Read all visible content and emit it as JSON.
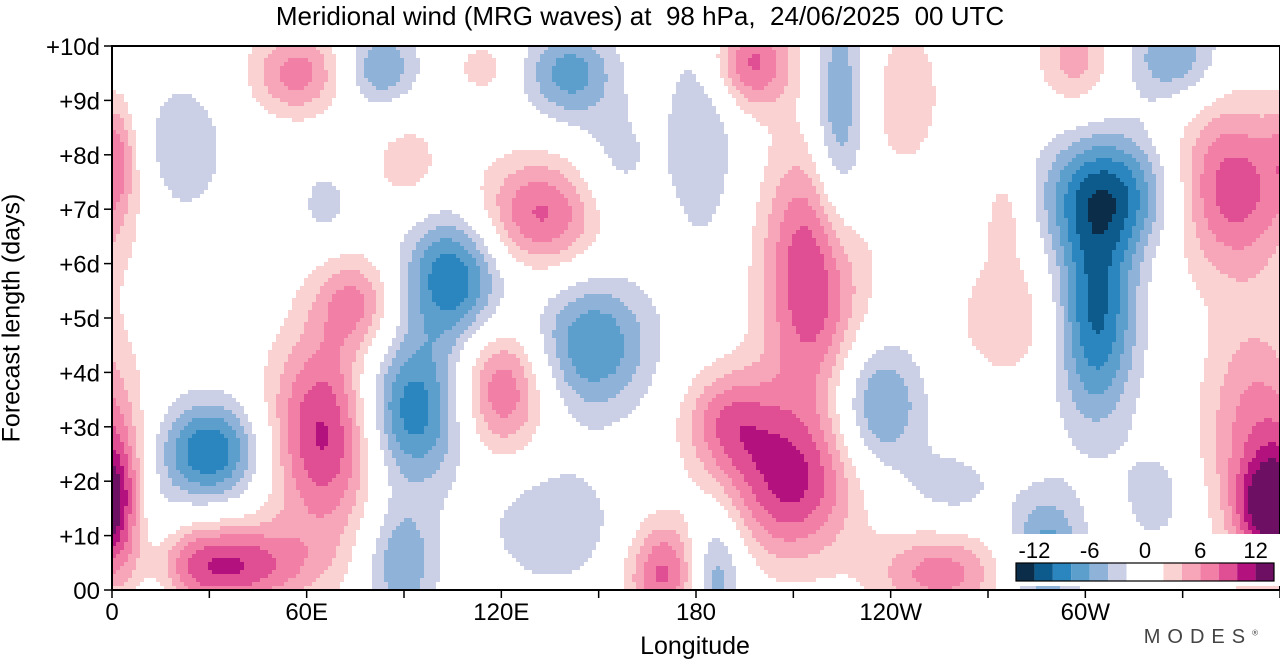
{
  "page": {
    "title": "Meridional wind (MRG waves) at  98 hPa,  24/06/2025  00 UTC",
    "brand": "MODES"
  },
  "chart_data": {
    "type": "heatmap",
    "title": "Meridional wind (MRG waves) at  98 hPa,  24/06/2025  00 UTC",
    "xlabel": "Longitude",
    "ylabel": "Forecast length (days)",
    "x_ticks": [
      {
        "lon": 0,
        "label": "0"
      },
      {
        "lon": 60,
        "label": "60E"
      },
      {
        "lon": 120,
        "label": "120E"
      },
      {
        "lon": 180,
        "label": "180"
      },
      {
        "lon": 240,
        "label": "120W"
      },
      {
        "lon": 300,
        "label": "60W"
      }
    ],
    "xlim": [
      0,
      360
    ],
    "y_ticks": [
      {
        "day": 0,
        "label": "00"
      },
      {
        "day": 1,
        "label": "+1d"
      },
      {
        "day": 2,
        "label": "+2d"
      },
      {
        "day": 3,
        "label": "+3d"
      },
      {
        "day": 4,
        "label": "+4d"
      },
      {
        "day": 5,
        "label": "+5d"
      },
      {
        "day": 6,
        "label": "+6d"
      },
      {
        "day": 7,
        "label": "+7d"
      },
      {
        "day": 8,
        "label": "+8d"
      },
      {
        "day": 9,
        "label": "+9d"
      },
      {
        "day": 10,
        "label": "+10d"
      }
    ],
    "ylim": [
      0,
      10
    ],
    "colorbar": {
      "labels": [
        {
          "value": -12,
          "label": "-12"
        },
        {
          "value": -6,
          "label": "-6"
        },
        {
          "value": 0,
          "label": "0"
        },
        {
          "value": 6,
          "label": "6"
        },
        {
          "value": 12,
          "label": "12"
        }
      ],
      "range": [
        -14,
        14
      ],
      "levels": [
        {
          "from": -14,
          "to": -12,
          "color": "#0b2d4a"
        },
        {
          "from": -12,
          "to": -10,
          "color": "#0d5a8c"
        },
        {
          "from": -10,
          "to": -8,
          "color": "#2b86bf"
        },
        {
          "from": -8,
          "to": -6,
          "color": "#5c9fcc"
        },
        {
          "from": -6,
          "to": -4,
          "color": "#8eb2d8"
        },
        {
          "from": -4,
          "to": -2,
          "color": "#ccd0e6"
        },
        {
          "from": -2,
          "to": 2,
          "color": "#ffffff"
        },
        {
          "from": 2,
          "to": 4,
          "color": "#fbd2d2"
        },
        {
          "from": 4,
          "to": 6,
          "color": "#f7a6b9"
        },
        {
          "from": 6,
          "to": 8,
          "color": "#f27fa6"
        },
        {
          "from": 8,
          "to": 10,
          "color": "#e04f93"
        },
        {
          "from": 10,
          "to": 12,
          "color": "#b3127e"
        },
        {
          "from": 12,
          "to": 14,
          "color": "#6d0f63"
        }
      ]
    },
    "features": [
      {
        "lon": 30,
        "day": 2.55,
        "peak": -10,
        "sx": 11,
        "sy": 0.65
      },
      {
        "lon": 21,
        "day": 8.1,
        "peak": -4,
        "sx": 10,
        "sy": 0.9
      },
      {
        "lon": 34,
        "day": 0.45,
        "peak": 10.5,
        "sx": 19,
        "sy": 0.55
      },
      {
        "lon": 2,
        "day": 1.8,
        "peak": 6,
        "sx": 6,
        "sy": 1.0
      },
      {
        "lon": 2,
        "day": 8.0,
        "peak": 4,
        "sx": 4,
        "sy": 0.7
      },
      {
        "lon": 13,
        "day": 0.5,
        "peak": -4,
        "sx": 6,
        "sy": 0.9
      },
      {
        "lon": 66,
        "day": 2.9,
        "peak": 11,
        "sx": 12,
        "sy": 1.3
      },
      {
        "lon": 75,
        "day": 5.3,
        "peak": 6,
        "sx": 9,
        "sy": 0.6
      },
      {
        "lon": 57,
        "day": 9.5,
        "peak": 7,
        "sx": 10,
        "sy": 0.55
      },
      {
        "lon": 83,
        "day": 9.6,
        "peak": -6,
        "sx": 8,
        "sy": 0.5
      },
      {
        "lon": 66,
        "day": 7.1,
        "peak": -3,
        "sx": 6,
        "sy": 0.5
      },
      {
        "lon": 92,
        "day": 3.3,
        "peak": -10,
        "sx": 12,
        "sy": 0.95
      },
      {
        "lon": 105,
        "day": 5.75,
        "peak": -10,
        "sx": 11,
        "sy": 0.85
      },
      {
        "lon": 89,
        "day": 0.5,
        "peak": -6,
        "sx": 8,
        "sy": 0.8
      },
      {
        "lon": 91,
        "day": 7.8,
        "peak": 3,
        "sx": 9,
        "sy": 0.7
      },
      {
        "lon": 120,
        "day": 3.7,
        "peak": 8.5,
        "sx": 10,
        "sy": 0.85
      },
      {
        "lon": 132,
        "day": 6.9,
        "peak": 8.5,
        "sx": 14,
        "sy": 0.75
      },
      {
        "lon": 136,
        "day": 1.2,
        "peak": -4,
        "sx": 14,
        "sy": 0.8
      },
      {
        "lon": 148,
        "day": 4.5,
        "peak": -8,
        "sx": 13,
        "sy": 0.9
      },
      {
        "lon": 141,
        "day": 9.5,
        "peak": -7,
        "sx": 10,
        "sy": 0.6
      },
      {
        "lon": 115,
        "day": 9.6,
        "peak": 3,
        "sx": 7,
        "sy": 0.4
      },
      {
        "lon": 170,
        "day": 0.3,
        "peak": 8.5,
        "sx": 8,
        "sy": 0.7
      },
      {
        "lon": 155,
        "day": 7.8,
        "peak": -3,
        "sx": 9,
        "sy": 0.8
      },
      {
        "lon": 182,
        "day": 8.5,
        "peak": -4,
        "sx": 8,
        "sy": 1.6
      },
      {
        "lon": 186,
        "day": 0.3,
        "peak": -6,
        "sx": 6,
        "sy": 0.8
      },
      {
        "lon": 190,
        "day": 3.1,
        "peak": 7,
        "sx": 10,
        "sy": 0.7
      },
      {
        "lon": 209,
        "day": 1.95,
        "peak": 10,
        "sx": 14,
        "sy": 1.0
      },
      {
        "lon": 216,
        "day": 5.75,
        "peak": 10.5,
        "sx": 11,
        "sy": 1.7
      },
      {
        "lon": 197,
        "day": 9.7,
        "peak": 8.5,
        "sx": 9,
        "sy": 0.6
      },
      {
        "lon": 224,
        "day": 8.5,
        "peak": -7,
        "sx": 6,
        "sy": 1.7
      },
      {
        "lon": 236,
        "day": 3.4,
        "peak": -7,
        "sx": 10,
        "sy": 0.85
      },
      {
        "lon": 255,
        "day": 0.3,
        "peak": 7,
        "sx": 14,
        "sy": 0.55
      },
      {
        "lon": 245,
        "day": 9.1,
        "peak": 3.5,
        "sx": 8,
        "sy": 1.0
      },
      {
        "lon": 278,
        "day": 5.0,
        "peak": 3.5,
        "sx": 14,
        "sy": 0.9
      },
      {
        "lon": 276,
        "day": 7.0,
        "peak": 3,
        "sx": 6,
        "sy": 0.7
      },
      {
        "lon": 288,
        "day": 0.7,
        "peak": -7,
        "sx": 8,
        "sy": 0.8
      },
      {
        "lon": 303,
        "day": 5.1,
        "peak": -11,
        "sx": 9,
        "sy": 1.4
      },
      {
        "lon": 308,
        "day": 7.3,
        "peak": -9.5,
        "sx": 15,
        "sy": 0.8
      },
      {
        "lon": 297,
        "day": 9.8,
        "peak": 5,
        "sx": 8,
        "sy": 0.7
      },
      {
        "lon": 327,
        "day": 9.8,
        "peak": -6,
        "sx": 10,
        "sy": 0.6
      },
      {
        "lon": 345,
        "day": 7.4,
        "peak": 9.5,
        "sx": 14,
        "sy": 1.1
      },
      {
        "lon": 352,
        "day": 2.8,
        "peak": 7,
        "sx": 11,
        "sy": 1.6
      },
      {
        "lon": 355,
        "day": 1.5,
        "peak": 8,
        "sx": 6,
        "sy": 0.6
      },
      {
        "lon": 322,
        "day": 1.7,
        "peak": -3,
        "sx": 8,
        "sy": 0.7
      },
      {
        "lon": 259,
        "day": 1.9,
        "peak": -3,
        "sx": 10,
        "sy": 0.5
      }
    ]
  }
}
